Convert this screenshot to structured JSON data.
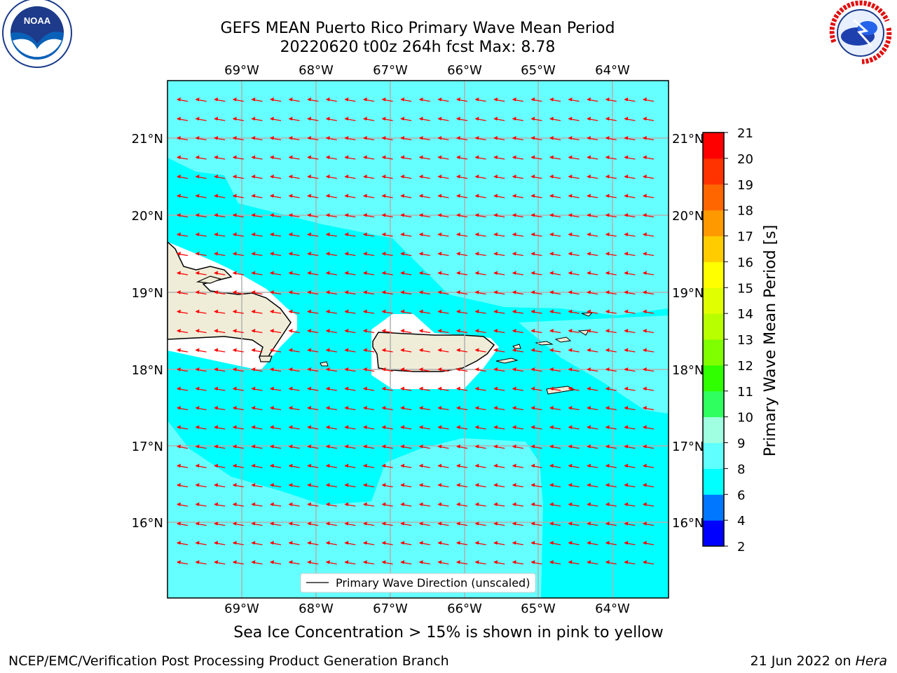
{
  "title_line1": "GEFS MEAN Puerto Rico Primary Wave Mean Period",
  "title_line2": "20220620 t00z 264h fcst   Max: 8.78",
  "lon_ticks": [
    "69°W",
    "68°W",
    "67°W",
    "66°W",
    "65°W",
    "64°W"
  ],
  "lat_ticks": [
    "21°N",
    "20°N",
    "19°N",
    "18°N",
    "17°N",
    "16°N"
  ],
  "legend_label": "Primary Wave Direction (unscaled)",
  "colorbar": {
    "label": "Primary Wave Mean Period [s]",
    "ticks": [
      "2",
      "4",
      "6",
      "8",
      "9",
      "10",
      "11",
      "12",
      "13",
      "14",
      "15",
      "16",
      "17",
      "18",
      "19",
      "20",
      "21"
    ],
    "colors": [
      "#0000ff",
      "#0077ff",
      "#00ffff",
      "#5fffff",
      "#a0ffe0",
      "#30ff60",
      "#30ff00",
      "#80ff00",
      "#b8ff00",
      "#e0ff00",
      "#ffff00",
      "#ffcc00",
      "#ff9900",
      "#ff6600",
      "#ff3300",
      "#ff0000"
    ]
  },
  "ice_note": "Sea Ice Concentration > 15% is shown in pink to yellow",
  "footer_left": "NCEP/EMC/Verification Post Processing Product Generation Branch",
  "footer_right_prefix": "21 Jun 2022 on ",
  "footer_right_host": "Hera",
  "logos": {
    "left": "noaa-logo",
    "right": "nws-logo"
  },
  "colors": {
    "ocean_main": "#00ffff",
    "ocean_light": "#66ffff",
    "land": "#efedd8",
    "arrow": "#ff0000",
    "grid": "#b0b0b0"
  }
}
